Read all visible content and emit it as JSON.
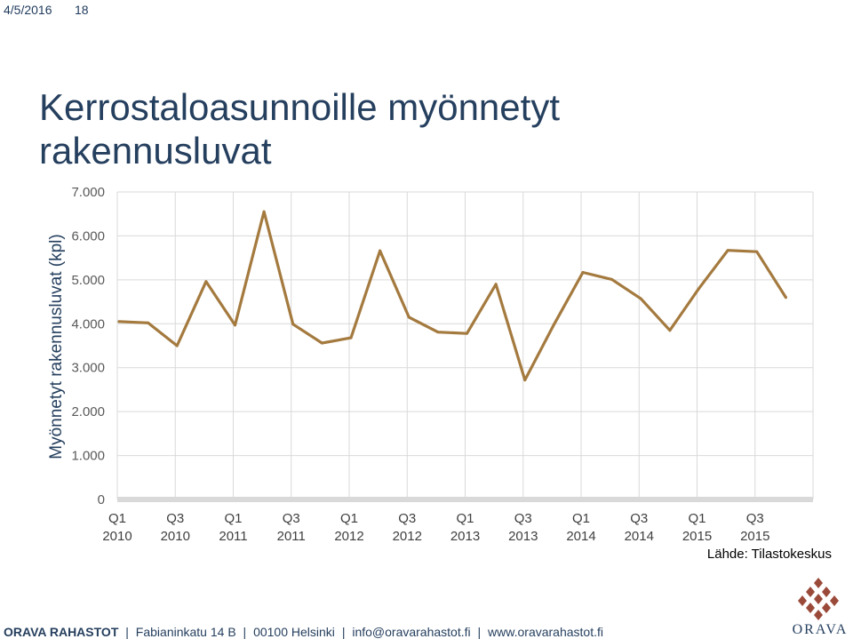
{
  "header": {
    "date": "4/5/2016",
    "page_number": "18"
  },
  "title": "Kerrostaloasunnoille myönnetyt rakennusluvat",
  "source": "Lähde: Tilastokeskus",
  "footer": {
    "brand": "ORAVA RAHASTOT",
    "items": [
      "Fabianinkatu 14 B",
      "00100 Helsinki",
      "info@oravarahastot.fi",
      "www.oravarahastot.fi"
    ]
  },
  "logo": {
    "text": "ORAVA",
    "icon": "pinecone-logo-icon"
  },
  "colors": {
    "line": "#a47a3f",
    "title": "#253f5e",
    "grid": "#d9d9d9",
    "logo": "#9b4a3a"
  },
  "chart_data": {
    "type": "line",
    "title": "",
    "xlabel": "",
    "ylabel": "Myönnetyt rakennusluvat (kpl)",
    "ylim": [
      0,
      7000
    ],
    "yticks": [
      0,
      1000,
      2000,
      3000,
      4000,
      5000,
      6000,
      7000
    ],
    "ytick_labels": [
      "0",
      "1.000",
      "2.000",
      "3.000",
      "4.000",
      "5.000",
      "6.000",
      "7.000"
    ],
    "xtick_labels": [
      [
        "Q1",
        "2010"
      ],
      [
        "Q3",
        "2010"
      ],
      [
        "Q1",
        "2011"
      ],
      [
        "Q3",
        "2011"
      ],
      [
        "Q1",
        "2012"
      ],
      [
        "Q3",
        "2012"
      ],
      [
        "Q1",
        "2013"
      ],
      [
        "Q3",
        "2013"
      ],
      [
        "Q1",
        "2014"
      ],
      [
        "Q3",
        "2014"
      ],
      [
        "Q1",
        "2015"
      ],
      [
        "Q3",
        "2015"
      ]
    ],
    "categories": [
      "Q1 2010",
      "Q2 2010",
      "Q3 2010",
      "Q4 2010",
      "Q1 2011",
      "Q2 2011",
      "Q3 2011",
      "Q4 2011",
      "Q1 2012",
      "Q2 2012",
      "Q3 2012",
      "Q4 2012",
      "Q1 2013",
      "Q2 2013",
      "Q3 2013",
      "Q4 2013",
      "Q1 2014",
      "Q2 2014",
      "Q3 2014",
      "Q4 2014",
      "Q1 2015",
      "Q2 2015",
      "Q3 2015",
      "Q4 2015"
    ],
    "values": [
      4050,
      4020,
      3500,
      4960,
      3970,
      6550,
      3990,
      3560,
      3680,
      5660,
      4150,
      3810,
      3780,
      4900,
      2720,
      3980,
      5170,
      5010,
      4570,
      3850,
      4800,
      5670,
      5640,
      4600
    ],
    "grid": true
  }
}
